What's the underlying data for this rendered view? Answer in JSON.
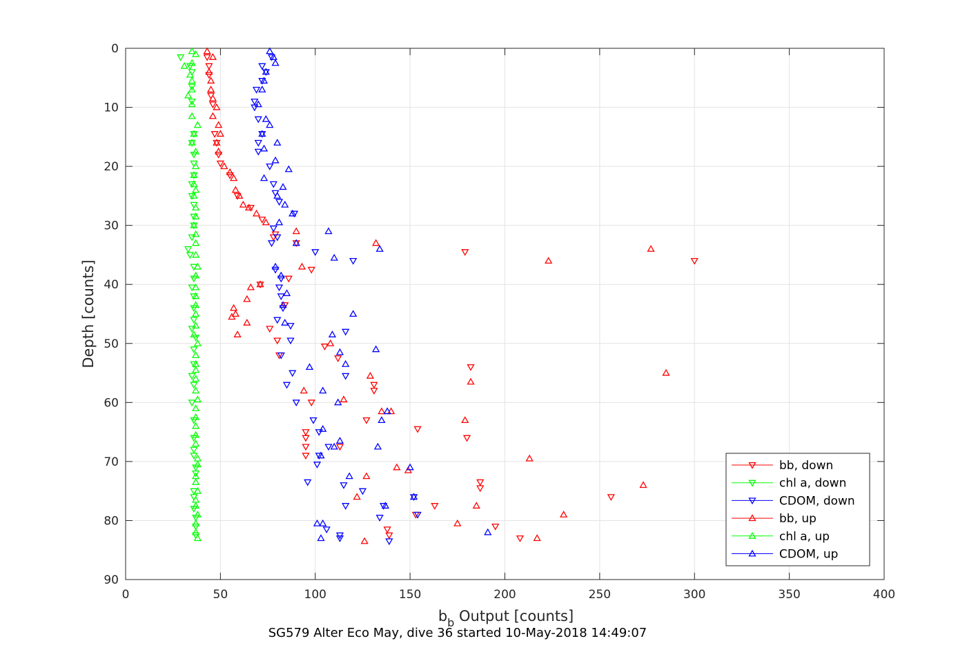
{
  "chart_data": {
    "type": "scatter",
    "title": "SG579 Alter Eco May, dive 36 started 10-May-2018 14:49:07",
    "xlabel_main": "b",
    "xlabel_sub": "b",
    "xlabel_rest": " Output [counts]",
    "ylabel": "Depth [counts]",
    "xlim": [
      0,
      400
    ],
    "ylim": [
      0,
      90
    ],
    "y_reversed": true,
    "grid": true,
    "legend_position": "bottom-right",
    "xticks": [
      0,
      50,
      100,
      150,
      200,
      250,
      300,
      350,
      400
    ],
    "yticks": [
      0,
      10,
      20,
      30,
      40,
      50,
      60,
      70,
      80,
      90
    ],
    "series": [
      {
        "name": "bb, down",
        "color": "#ff0000",
        "marker": "triangle-down",
        "points": [
          [
            43,
            1.5
          ],
          [
            44,
            3
          ],
          [
            44,
            4.5
          ],
          [
            45,
            8
          ],
          [
            46,
            9.5
          ],
          [
            47,
            14.5
          ],
          [
            48,
            16
          ],
          [
            49,
            18
          ],
          [
            50,
            19.5
          ],
          [
            55,
            21.5
          ],
          [
            59,
            25
          ],
          [
            66,
            27
          ],
          [
            72,
            29
          ],
          [
            78,
            32
          ],
          [
            79,
            31.5
          ],
          [
            90,
            33
          ],
          [
            179,
            34.5
          ],
          [
            300,
            36
          ],
          [
            98,
            37.5
          ],
          [
            86,
            39
          ],
          [
            71,
            40
          ],
          [
            84,
            43.5
          ],
          [
            76,
            47.5
          ],
          [
            80,
            49.5
          ],
          [
            81,
            52
          ],
          [
            112,
            52.5
          ],
          [
            105,
            50.5
          ],
          [
            182,
            54
          ],
          [
            131,
            57
          ],
          [
            131,
            58
          ],
          [
            98,
            60
          ],
          [
            127,
            63
          ],
          [
            154,
            64.5
          ],
          [
            180,
            66
          ],
          [
            95,
            65
          ],
          [
            95,
            66
          ],
          [
            95,
            67.5
          ],
          [
            95,
            69
          ],
          [
            113,
            67.5
          ],
          [
            187,
            73.5
          ],
          [
            187,
            74.5
          ],
          [
            256,
            76
          ],
          [
            163,
            77.5
          ],
          [
            153,
            79
          ],
          [
            195,
            81
          ],
          [
            138,
            81.5
          ],
          [
            208,
            83
          ],
          [
            139,
            82.5
          ]
        ]
      },
      {
        "name": "chl a, down",
        "color": "#00ff00",
        "marker": "triangle-down",
        "points": [
          [
            29,
            1.5
          ],
          [
            34,
            3
          ],
          [
            35,
            4
          ],
          [
            35,
            6.5
          ],
          [
            35,
            9
          ],
          [
            36,
            14.5
          ],
          [
            35,
            16
          ],
          [
            36,
            18
          ],
          [
            36,
            19.5
          ],
          [
            36,
            21.5
          ],
          [
            35,
            23
          ],
          [
            35,
            25
          ],
          [
            36,
            26.5
          ],
          [
            36,
            28.5
          ],
          [
            36,
            30
          ],
          [
            35,
            32
          ],
          [
            33,
            34
          ],
          [
            34,
            35
          ],
          [
            36,
            37
          ],
          [
            36,
            39
          ],
          [
            35,
            40.5
          ],
          [
            36,
            42
          ],
          [
            36,
            44
          ],
          [
            36,
            46
          ],
          [
            35,
            47.5
          ],
          [
            37,
            49
          ],
          [
            36,
            51
          ],
          [
            36,
            53.5
          ],
          [
            35,
            55.5
          ],
          [
            36,
            57
          ],
          [
            35,
            60
          ],
          [
            36,
            63
          ],
          [
            36,
            66
          ],
          [
            36,
            68
          ],
          [
            36,
            69
          ],
          [
            37,
            71
          ],
          [
            37,
            72
          ],
          [
            36,
            75
          ],
          [
            36,
            76
          ],
          [
            36,
            78
          ],
          [
            37,
            79.5
          ],
          [
            37,
            81
          ],
          [
            37,
            82.5
          ]
        ]
      },
      {
        "name": "CDOM, down",
        "color": "#0000ff",
        "marker": "triangle-down",
        "points": [
          [
            77,
            1.5
          ],
          [
            72,
            3
          ],
          [
            74,
            4
          ],
          [
            72,
            5.5
          ],
          [
            69,
            7
          ],
          [
            68,
            9
          ],
          [
            68,
            10
          ],
          [
            70,
            12
          ],
          [
            72,
            14.5
          ],
          [
            70,
            16
          ],
          [
            70,
            17.5
          ],
          [
            76,
            20
          ],
          [
            78,
            23
          ],
          [
            79,
            24.5
          ],
          [
            81,
            26
          ],
          [
            89,
            28
          ],
          [
            78,
            30.5
          ],
          [
            80,
            32
          ],
          [
            77,
            33
          ],
          [
            100,
            34.5
          ],
          [
            120,
            36
          ],
          [
            79,
            37.5
          ],
          [
            82,
            39
          ],
          [
            81,
            40.5
          ],
          [
            82,
            42
          ],
          [
            83,
            44
          ],
          [
            80,
            46
          ],
          [
            87,
            47
          ],
          [
            116,
            48
          ],
          [
            87,
            49.5
          ],
          [
            82,
            52
          ],
          [
            116,
            55.5
          ],
          [
            88,
            55
          ],
          [
            85,
            57
          ],
          [
            90,
            60
          ],
          [
            99,
            63
          ],
          [
            102,
            65
          ],
          [
            107,
            67.5
          ],
          [
            102,
            69
          ],
          [
            101,
            70.5
          ],
          [
            96,
            73.5
          ],
          [
            115,
            74
          ],
          [
            125,
            75
          ],
          [
            116,
            77.5
          ],
          [
            136,
            77.5
          ],
          [
            152,
            76
          ],
          [
            154,
            79
          ],
          [
            134,
            79.5
          ],
          [
            106,
            81.5
          ],
          [
            113,
            82.5
          ],
          [
            113,
            83
          ],
          [
            139,
            83.5
          ]
        ]
      },
      {
        "name": "bb, up",
        "color": "#ff0000",
        "marker": "triangle-up",
        "points": [
          [
            43,
            0.5
          ],
          [
            46,
            1.5
          ],
          [
            44,
            4
          ],
          [
            45,
            5.5
          ],
          [
            45,
            7
          ],
          [
            46,
            8.5
          ],
          [
            48,
            10
          ],
          [
            46,
            11.5
          ],
          [
            49,
            13
          ],
          [
            50,
            14.5
          ],
          [
            48,
            16
          ],
          [
            49,
            17.5
          ],
          [
            52,
            20
          ],
          [
            55,
            21
          ],
          [
            57,
            22
          ],
          [
            58,
            24
          ],
          [
            60,
            25
          ],
          [
            62,
            26.5
          ],
          [
            65,
            27
          ],
          [
            74,
            29.5
          ],
          [
            69,
            28
          ],
          [
            90,
            31
          ],
          [
            132,
            33
          ],
          [
            277,
            34
          ],
          [
            223,
            36
          ],
          [
            93,
            37
          ],
          [
            66,
            40.5
          ],
          [
            71,
            40
          ],
          [
            64,
            42.5
          ],
          [
            57,
            44
          ],
          [
            58,
            45
          ],
          [
            56,
            45.5
          ],
          [
            64,
            46.5
          ],
          [
            59,
            48.5
          ],
          [
            108,
            50
          ],
          [
            129,
            55.5
          ],
          [
            285,
            55
          ],
          [
            182,
            56.5
          ],
          [
            94,
            58
          ],
          [
            115,
            59.5
          ],
          [
            140,
            61.5
          ],
          [
            135,
            61.5
          ],
          [
            179,
            63
          ],
          [
            213,
            69.5
          ],
          [
            143,
            71
          ],
          [
            149,
            71.5
          ],
          [
            127,
            72.5
          ],
          [
            122,
            76
          ],
          [
            185,
            77.5
          ],
          [
            231,
            79
          ],
          [
            175,
            80.5
          ],
          [
            273,
            74
          ],
          [
            217,
            83
          ],
          [
            126,
            83.5
          ]
        ]
      },
      {
        "name": "chl a, up",
        "color": "#00ff00",
        "marker": "triangle-up",
        "points": [
          [
            35,
            0.5
          ],
          [
            37,
            1
          ],
          [
            35,
            2.5
          ],
          [
            31,
            3
          ],
          [
            34,
            4.5
          ],
          [
            35,
            5.5
          ],
          [
            35,
            7
          ],
          [
            33,
            8
          ],
          [
            35,
            9.5
          ],
          [
            35,
            11.5
          ],
          [
            38,
            13
          ],
          [
            36,
            14.5
          ],
          [
            35,
            16
          ],
          [
            37,
            17.5
          ],
          [
            37,
            20
          ],
          [
            36,
            21.5
          ],
          [
            36,
            23
          ],
          [
            37,
            24
          ],
          [
            36,
            25
          ],
          [
            37,
            27
          ],
          [
            37,
            28.5
          ],
          [
            36,
            30
          ],
          [
            37,
            31.5
          ],
          [
            37,
            33
          ],
          [
            37,
            35
          ],
          [
            38,
            37
          ],
          [
            37,
            38.5
          ],
          [
            37,
            40.5
          ],
          [
            37,
            42
          ],
          [
            37,
            43.5
          ],
          [
            37,
            45
          ],
          [
            37,
            47
          ],
          [
            36,
            48.5
          ],
          [
            38,
            50
          ],
          [
            37,
            52
          ],
          [
            37,
            53.5
          ],
          [
            37,
            54.5
          ],
          [
            37,
            56
          ],
          [
            37,
            58
          ],
          [
            38,
            59.5
          ],
          [
            37,
            61
          ],
          [
            37,
            62.5
          ],
          [
            37,
            64
          ],
          [
            37,
            65.5
          ],
          [
            37,
            67
          ],
          [
            38,
            69.5
          ],
          [
            38,
            70.5
          ],
          [
            37,
            72.5
          ],
          [
            37,
            73.5
          ],
          [
            38,
            75
          ],
          [
            37,
            76.5
          ],
          [
            37,
            77.5
          ],
          [
            38,
            79
          ],
          [
            37,
            80.5
          ],
          [
            37,
            82
          ],
          [
            38,
            83
          ]
        ]
      },
      {
        "name": "CDOM, up",
        "color": "#0000ff",
        "marker": "triangle-up",
        "points": [
          [
            76,
            0.5
          ],
          [
            78,
            1.5
          ],
          [
            79,
            2.5
          ],
          [
            74,
            4
          ],
          [
            73,
            5.5
          ],
          [
            72,
            7
          ],
          [
            70,
            9.5
          ],
          [
            74,
            12
          ],
          [
            76,
            13
          ],
          [
            72,
            14.5
          ],
          [
            80,
            16
          ],
          [
            73,
            17
          ],
          [
            79,
            19
          ],
          [
            86,
            20.5
          ],
          [
            73,
            22
          ],
          [
            83,
            23.5
          ],
          [
            80,
            25
          ],
          [
            84,
            26.5
          ],
          [
            88,
            28
          ],
          [
            81,
            29.5
          ],
          [
            107,
            31
          ],
          [
            90,
            33
          ],
          [
            134,
            34
          ],
          [
            110,
            35.5
          ],
          [
            79,
            37
          ],
          [
            82,
            38.5
          ],
          [
            85,
            41.5
          ],
          [
            83,
            43.5
          ],
          [
            120,
            45
          ],
          [
            84,
            46.5
          ],
          [
            109,
            48.5
          ],
          [
            132,
            51
          ],
          [
            113,
            51.5
          ],
          [
            116,
            53.5
          ],
          [
            97,
            54
          ],
          [
            104,
            58
          ],
          [
            112,
            60
          ],
          [
            138,
            61.5
          ],
          [
            135,
            63
          ],
          [
            104,
            64.5
          ],
          [
            113,
            66.5
          ],
          [
            110,
            67.5
          ],
          [
            133,
            67.5
          ],
          [
            103,
            69
          ],
          [
            150,
            71
          ],
          [
            118,
            72.5
          ],
          [
            137,
            77.5
          ],
          [
            152,
            76
          ],
          [
            101,
            80.5
          ],
          [
            104,
            80.5
          ],
          [
            191,
            82
          ],
          [
            103,
            83
          ]
        ]
      }
    ]
  }
}
